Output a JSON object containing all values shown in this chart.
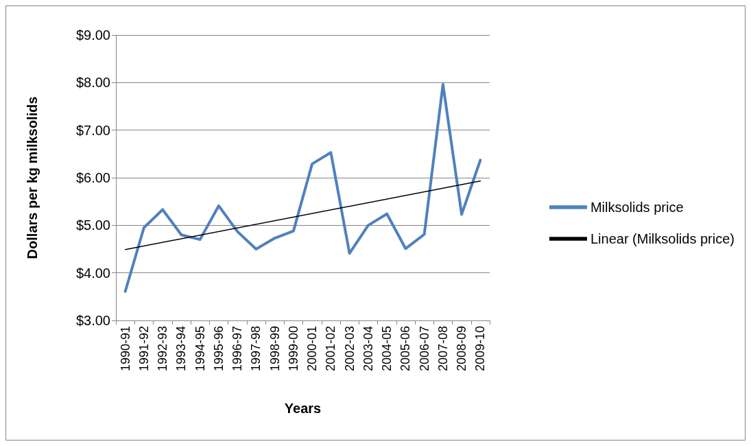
{
  "chart_data": {
    "type": "line",
    "xlabel": "Years",
    "ylabel": "Dollars per kg milksolids",
    "categories": [
      "1990-91",
      "1991-92",
      "1992-93",
      "1993-94",
      "1994-95",
      "1995-96",
      "1996-97",
      "1997-98",
      "1998-99",
      "1999-00",
      "2000-01",
      "2001-02",
      "2002-03",
      "2003-04",
      "2004-05",
      "2005-06",
      "2006-07",
      "2007-08",
      "2008-09",
      "2009-10"
    ],
    "series": [
      {
        "name": "Milksolids price",
        "color": "#4f81bd",
        "values": [
          3.61,
          4.95,
          5.33,
          4.8,
          4.7,
          5.41,
          4.87,
          4.5,
          4.73,
          4.88,
          6.29,
          6.53,
          4.41,
          5.0,
          5.24,
          4.51,
          4.81,
          7.96,
          5.23,
          6.37
        ]
      },
      {
        "name": "Linear (Milksolids price)",
        "color": "#000000",
        "values": [
          4.49,
          null,
          null,
          null,
          null,
          null,
          null,
          null,
          null,
          null,
          null,
          null,
          null,
          null,
          null,
          null,
          null,
          null,
          null,
          5.93
        ]
      }
    ],
    "ylim": [
      3,
      9
    ],
    "yticks": [
      {
        "value": 3,
        "label": "$3.00"
      },
      {
        "value": 4,
        "label": "$4.00"
      },
      {
        "value": 5,
        "label": "$5.00"
      },
      {
        "value": 6,
        "label": "$6.00"
      },
      {
        "value": 7,
        "label": "$7.00"
      },
      {
        "value": 8,
        "label": "$8.00"
      },
      {
        "value": 9,
        "label": "$9.00"
      }
    ],
    "grid": "y",
    "legend": "right",
    "marker": "none",
    "line_style": "solid"
  }
}
